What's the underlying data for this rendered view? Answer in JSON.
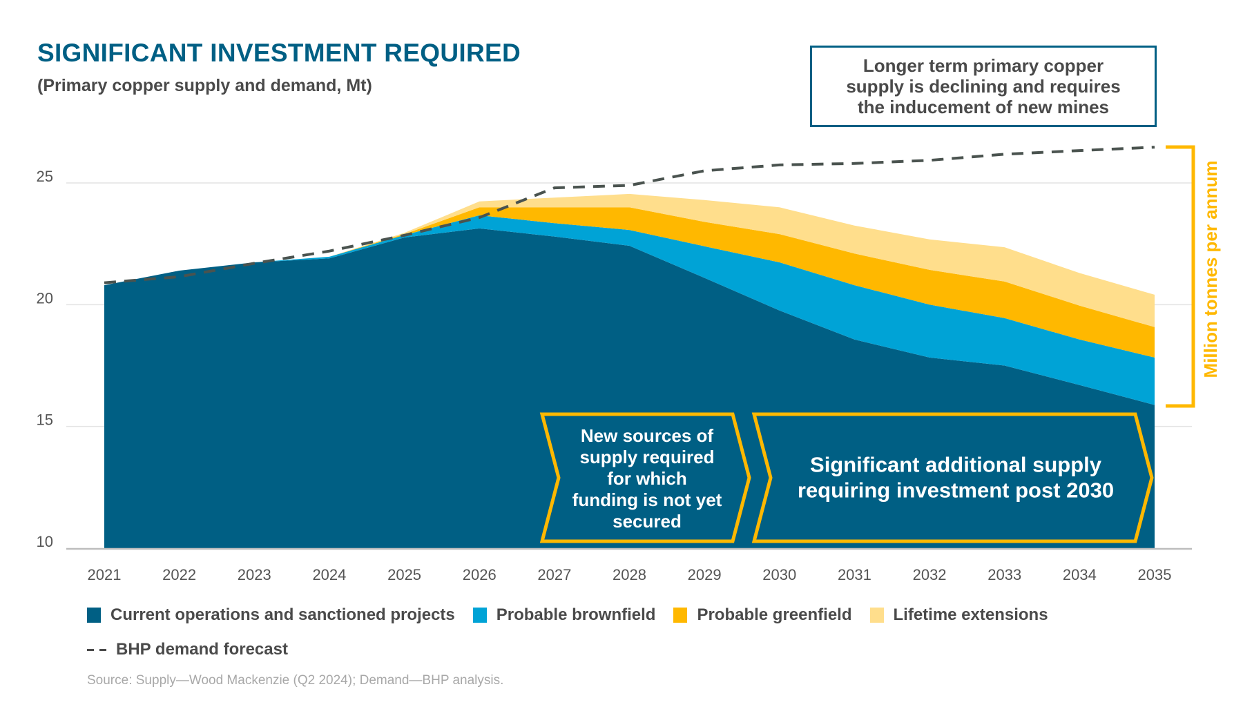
{
  "title": "SIGNIFICANT INVESTMENT REQUIRED",
  "subtitle": "(Primary copper supply and demand, Mt)",
  "callout": "Longer term primary copper\nsupply is declining and requires\nthe inducement of new mines",
  "units_label": "Million tonnes per annum",
  "chevrons": [
    {
      "lines": [
        "New sources of",
        "supply required",
        "for which",
        "funding is not yet",
        "secured"
      ]
    },
    {
      "lines": [
        "Significant additional supply",
        "requiring investment post 2030"
      ]
    }
  ],
  "source": "Source: Supply—Wood Mackenzie (Q2 2024); Demand—BHP analysis.",
  "colors": {
    "current": "#005F84",
    "brownfield": "#00A3D6",
    "greenfield": "#FFB800",
    "lifetime": "#FFDE8C",
    "demand": "#4a534f",
    "title": "#005F84",
    "bracket": "#FFB800"
  },
  "chart_data": {
    "type": "area",
    "stacked": true,
    "title": "SIGNIFICANT INVESTMENT REQUIRED",
    "subtitle": "(Primary copper supply and demand, Mt)",
    "xlabel": "",
    "ylabel": "Million tonnes per annum",
    "ylim": [
      10,
      27
    ],
    "yticks": [
      10,
      15,
      20,
      25
    ],
    "grid": true,
    "legend_position": "bottom",
    "x": [
      "2021",
      "2022",
      "2023",
      "2024",
      "2025",
      "2026",
      "2027",
      "2028",
      "2029",
      "2030",
      "2031",
      "2032",
      "2033",
      "2034",
      "2035"
    ],
    "series": [
      {
        "name": "Current operations and sanctioned projects",
        "kind": "area",
        "values": [
          20.8,
          21.4,
          21.74,
          21.9,
          22.76,
          23.13,
          22.8,
          22.42,
          21.1,
          19.76,
          18.57,
          17.83,
          17.5,
          16.7,
          15.88
        ]
      },
      {
        "name": "Probable brownfield",
        "kind": "area",
        "values": [
          0.0,
          0.0,
          0.0,
          0.07,
          0.1,
          0.54,
          0.55,
          0.65,
          1.3,
          1.98,
          2.23,
          2.17,
          1.95,
          1.87,
          1.95
        ]
      },
      {
        "name": "Probable greenfield",
        "kind": "area",
        "values": [
          0.0,
          0.0,
          0.0,
          0.0,
          0.04,
          0.33,
          0.65,
          0.93,
          1.0,
          1.16,
          1.3,
          1.43,
          1.5,
          1.39,
          1.25
        ]
      },
      {
        "name": "Lifetime extensions",
        "kind": "area",
        "values": [
          0.0,
          0.0,
          0.0,
          0.0,
          0.05,
          0.24,
          0.4,
          0.55,
          0.9,
          1.1,
          1.15,
          1.25,
          1.41,
          1.34,
          1.33
        ]
      },
      {
        "name": "BHP demand forecast",
        "kind": "dashed-line",
        "values": [
          20.9,
          21.15,
          21.7,
          22.2,
          22.85,
          23.58,
          24.8,
          24.9,
          25.5,
          25.74,
          25.8,
          25.93,
          26.18,
          26.33,
          26.47
        ]
      }
    ],
    "annotations": [
      "Longer term primary copper supply is declining and requires the inducement of new mines",
      "New sources of supply required for which funding is not yet secured",
      "Significant additional supply requiring investment post 2030"
    ]
  },
  "legend": [
    {
      "label": "Current operations and sanctioned projects",
      "key": "current"
    },
    {
      "label": "Probable brownfield",
      "key": "brownfield"
    },
    {
      "label": "Probable greenfield",
      "key": "greenfield"
    },
    {
      "label": "Lifetime extensions",
      "key": "lifetime"
    }
  ],
  "legend_demand": "BHP demand forecast"
}
